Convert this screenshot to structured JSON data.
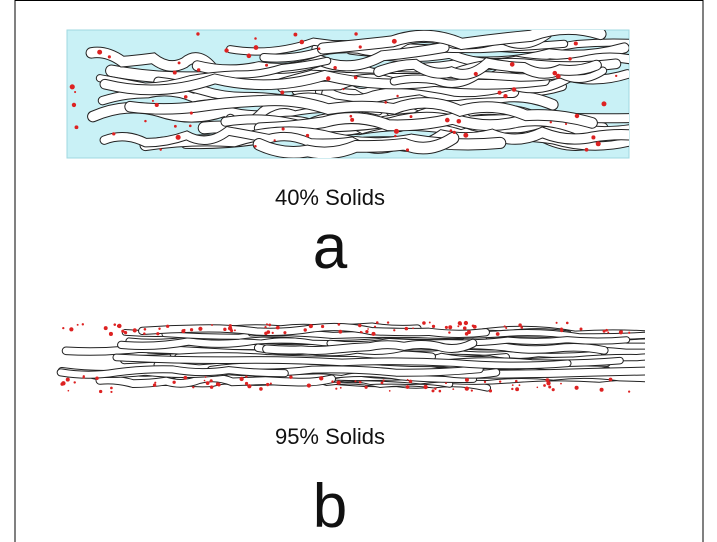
{
  "panels": [
    {
      "label": "40% Solids",
      "letter": "a"
    },
    {
      "label": "95% Solids",
      "letter": "b"
    }
  ]
}
